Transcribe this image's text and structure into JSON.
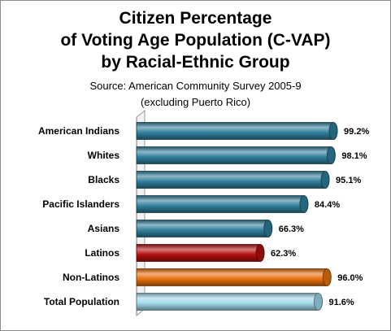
{
  "chart_data": {
    "type": "bar",
    "orientation": "horizontal",
    "title_lines": [
      "Citizen Percentage",
      "of Voting Age Population (C-VAP)",
      "by Racial-Ethnic Group"
    ],
    "subtitle_lines": [
      "Source: American Community Survey 2005-9",
      "(excluding Puerto Rico)"
    ],
    "categories": [
      "American Indians",
      "Whites",
      "Blacks",
      "Pacific Islanders",
      "Asians",
      "Latinos",
      "Non-Latinos",
      "Total Population"
    ],
    "values": [
      99.2,
      98.1,
      95.1,
      84.4,
      66.3,
      62.3,
      96.0,
      91.6
    ],
    "value_labels": [
      "99.2%",
      "98.1%",
      "95.1%",
      "84.4%",
      "66.3%",
      "62.3%",
      "96.0%",
      "91.6%"
    ],
    "bar_colors": [
      "#2f7f9c",
      "#2f7f9c",
      "#2f7f9c",
      "#2f7f9c",
      "#2f7f9c",
      "#b30f0f",
      "#e8700e",
      "#9fd8ea"
    ],
    "xlim": [
      0,
      100
    ],
    "grid": false,
    "legend": "none"
  }
}
